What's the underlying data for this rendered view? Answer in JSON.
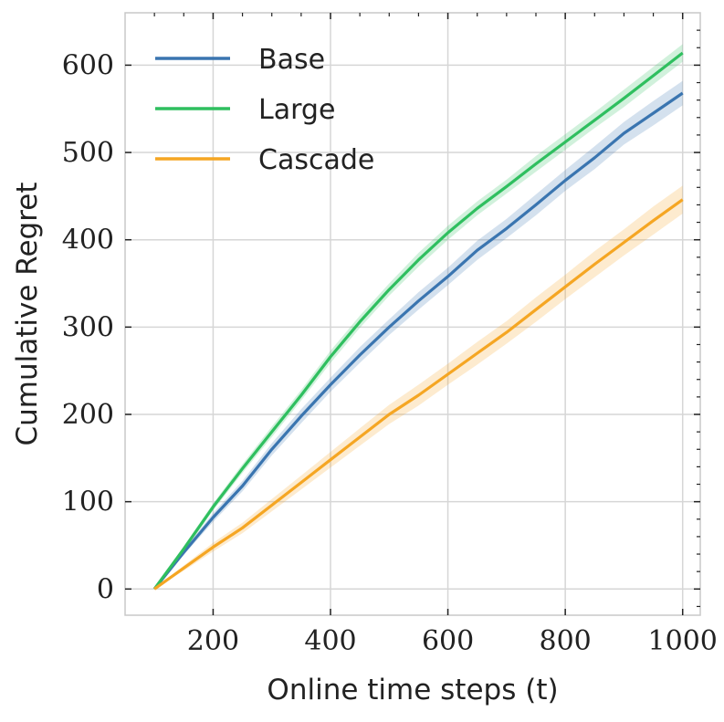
{
  "chart_data": {
    "type": "line",
    "title": "",
    "xlabel": "Online time steps (t)",
    "ylabel": "Cumulative Regret",
    "xlim": [
      50,
      1030
    ],
    "ylim": [
      -30,
      660
    ],
    "xticks": [
      200,
      400,
      600,
      800,
      1000
    ],
    "yticks": [
      0,
      100,
      200,
      300,
      400,
      500,
      600
    ],
    "xtick_labels": [
      "200",
      "400",
      "600",
      "800",
      "1000"
    ],
    "ytick_labels": [
      "0",
      "100",
      "200",
      "300",
      "400",
      "500",
      "600"
    ],
    "grid": true,
    "legend_position": "top-left",
    "x": [
      100,
      150,
      200,
      250,
      300,
      350,
      400,
      450,
      500,
      550,
      600,
      650,
      700,
      750,
      800,
      850,
      900,
      950,
      1000
    ],
    "series": [
      {
        "name": "Base",
        "color": "#3a75b0",
        "values": [
          0,
          42,
          82,
          118,
          160,
          198,
          234,
          268,
          300,
          330,
          358,
          388,
          413,
          440,
          468,
          494,
          522,
          545,
          568
        ],
        "band": [
          0,
          3,
          5,
          6,
          7,
          8,
          8,
          9,
          9,
          10,
          10,
          11,
          11,
          12,
          12,
          13,
          13,
          14,
          14
        ]
      },
      {
        "name": "Large",
        "color": "#2fbf5f",
        "values": [
          0,
          46,
          94,
          138,
          180,
          222,
          266,
          306,
          343,
          377,
          408,
          436,
          461,
          487,
          512,
          537,
          562,
          588,
          614
        ],
        "band": [
          0,
          3,
          4,
          5,
          6,
          6,
          7,
          7,
          7,
          8,
          8,
          8,
          8,
          9,
          9,
          9,
          10,
          10,
          10
        ]
      },
      {
        "name": "Cascade",
        "color": "#f5a623",
        "values": [
          0,
          24,
          48,
          70,
          96,
          122,
          148,
          174,
          200,
          222,
          246,
          270,
          294,
          320,
          346,
          372,
          397,
          422,
          446
        ],
        "band": [
          0,
          3,
          5,
          6,
          7,
          8,
          9,
          10,
          11,
          12,
          12,
          13,
          13,
          14,
          14,
          15,
          15,
          16,
          16
        ]
      }
    ]
  }
}
